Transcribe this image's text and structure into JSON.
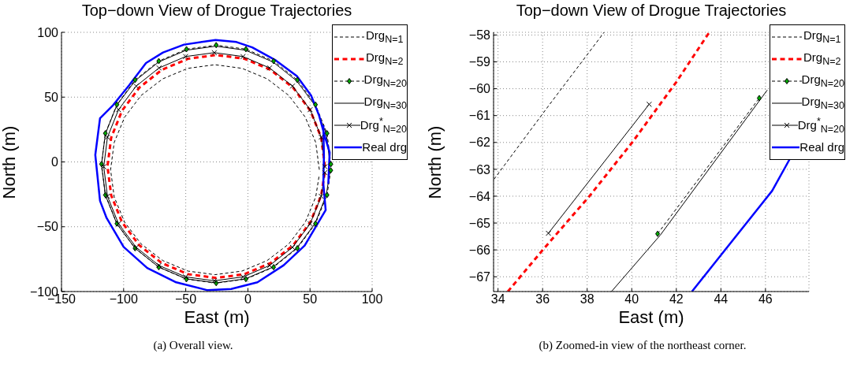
{
  "chart_data": [
    {
      "type": "line",
      "title": "Top−down View of Drogue Trajectories",
      "xlabel": "East (m)",
      "ylabel": "North (m)",
      "annotations": [
        "(a)  Overall view."
      ],
      "xlim": [
        -150,
        100
      ],
      "ylim": [
        -100,
        100
      ],
      "xticks": [
        -150,
        -100,
        -50,
        0,
        50,
        100
      ],
      "yticks": [
        -100,
        -50,
        0,
        50,
        100
      ],
      "grid": true,
      "legend": "top right",
      "series": [
        {
          "name": "Drg$_{N=1}$",
          "color": "#000000",
          "line_style": "dashed",
          "marker": "none",
          "x": [
            57.5,
            54.6,
            46.2,
            32.9,
            15.5,
            -4.7,
            -26.5,
            -48.3,
            -68.5,
            -85.9,
            -99.2,
            -107.6,
            -110.5,
            -107.6,
            -99.2,
            -85.9,
            -68.5,
            -48.3,
            -26.5,
            -4.7,
            15.5,
            32.9,
            46.2,
            54.6,
            57.4
          ],
          "values": [
            -6,
            15,
            34.5,
            51.3,
            64.1,
            72.2,
            75,
            72.2,
            64.1,
            51.3,
            34.5,
            15,
            -6,
            -27,
            -46.5,
            -63.3,
            -76.1,
            -84.2,
            -87,
            -84.2,
            -76.1,
            -63.3,
            -46.5,
            -27,
            -10.2
          ]
        },
        {
          "name": "Drg$_{N=2}$",
          "color": "#ff0000",
          "line_style": "dashed",
          "marker": "none",
          "x": [
            62,
            59,
            50.3,
            36.4,
            18.3,
            -2.8,
            -25.5,
            -48.2,
            -69.3,
            -87.4,
            -101.3,
            -110,
            -113,
            -110,
            -101.3,
            -87.4,
            -69.3,
            -48.2,
            -25.5,
            -2.8,
            18.3,
            36.4,
            50.3,
            59,
            61.9
          ],
          "values": [
            -3.5,
            18.8,
            39.5,
            57.3,
            71,
            79.6,
            82.5,
            79.6,
            71,
            57.3,
            39.5,
            18.8,
            -3.5,
            -25.8,
            -46.5,
            -64.3,
            -78,
            -86.6,
            -89.5,
            -86.6,
            -78,
            -64.3,
            -46.5,
            -25.8,
            -8
          ]
        },
        {
          "name": "Drg$_{N=20}$",
          "color": "#000000",
          "line_style": "dashed",
          "marker": "diamond",
          "x": [
            66.8,
            63.7,
            54.4,
            39.8,
            20.7,
            -1.6,
            -25.5,
            -49.4,
            -71.7,
            -90.8,
            -105.4,
            -114.7,
            -117.8,
            -114.7,
            -105.4,
            -90.8,
            -71.7,
            -49.4,
            -25.5,
            -1.6,
            20.7,
            39.8,
            54.4,
            63.7,
            66.7
          ],
          "values": [
            -1.7,
            22.1,
            44.2,
            63.2,
            77.8,
            87,
            90.1,
            87,
            77.8,
            63.2,
            44.2,
            22.1,
            -1.7,
            -25.5,
            -47.6,
            -66.6,
            -81.2,
            -90.4,
            -93.5,
            -90.4,
            -81.2,
            -66.6,
            -47.6,
            -25.5,
            -6.5
          ]
        },
        {
          "name": "Drg$_{N=30}$",
          "color": "#000000",
          "line_style": "solid",
          "marker": "none",
          "x": [
            66.2,
            63.1,
            53.9,
            39.2,
            20.2,
            -2,
            -25.8,
            -49.6,
            -71.8,
            -90.8,
            -105.5,
            -114.7,
            -117.8,
            -114.7,
            -105.5,
            -90.8,
            -71.8,
            -49.6,
            -25.8,
            -2,
            20.2,
            39.2,
            53.9,
            63.1,
            66.1
          ],
          "values": [
            -2,
            21.6,
            43.7,
            62.6,
            77.1,
            86.2,
            89.3,
            86.2,
            77.1,
            62.6,
            43.7,
            21.6,
            -2,
            -25.6,
            -47.7,
            -66.6,
            -81.1,
            -90.2,
            -93.3,
            -90.2,
            -81.1,
            -66.6,
            -47.7,
            -25.6,
            -6.8
          ]
        },
        {
          "name": "Drg$^{*}$$_{N=20}$",
          "color": "#000000",
          "line_style": "solid",
          "marker": "cross",
          "x": [
            62,
            59,
            50.1,
            35.9,
            17.5,
            -3.9,
            -27,
            -50.1,
            -71.5,
            -89.9,
            -104.1,
            -113,
            -116,
            -113,
            -104.1,
            -89.9,
            -71.5,
            -50.1,
            -27,
            -3.9,
            17.5,
            35.9,
            50.1,
            59,
            61.9
          ],
          "values": [
            -3.7,
            19.1,
            40.3,
            58.5,
            72.5,
            81.3,
            84.3,
            81.3,
            72.5,
            58.5,
            40.3,
            19.1,
            -3.7,
            -26.5,
            -47.7,
            -65.9,
            -79.9,
            -88.7,
            -91.7,
            -88.7,
            -79.9,
            -65.9,
            -47.7,
            -26.5,
            -8.3
          ]
        },
        {
          "name": "Real drg",
          "color": "#0000ff",
          "line_style": "solid",
          "marker": "none",
          "x": [
            60.7,
            61.2,
            60.7,
            62.6,
            45.7,
            28.8,
            7.7,
            -13.4,
            -32.4,
            -57.7,
            -81,
            -100,
            -113.7,
            -119,
            -122.8,
            -119,
            -108.4,
            -95.7,
            -82,
            -68.3,
            -51.4,
            -26,
            -9.2,
            3.5,
            22.5,
            39.4,
            51,
            57.3,
            62.6,
            65.8,
            64.7
          ],
          "values": [
            28.3,
            5,
            -16.7,
            -37.2,
            -64.5,
            -79.7,
            -92.9,
            -98,
            -99,
            -92.9,
            -81.8,
            -65.6,
            -43.3,
            -30,
            5.4,
            33.7,
            43.9,
            59,
            76.3,
            84.4,
            90.5,
            94.1,
            92.5,
            88.4,
            78.3,
            66.2,
            51,
            35.8,
            17.5,
            7.4,
            -16.9
          ]
        }
      ]
    },
    {
      "type": "line",
      "title": "Top−down View of Drogue Trajectories",
      "xlabel": "East (m)",
      "ylabel": "North (m)",
      "annotations": [
        "(b)  Zoomed-in view of the northeast corner."
      ],
      "xlim": [
        33.8,
        47.95
      ],
      "ylim": [
        -67.55,
        -57.9
      ],
      "xticks": [
        34,
        36,
        38,
        40,
        42,
        44,
        46
      ],
      "yticks": [
        -67,
        -66,
        -65,
        -64,
        -63,
        -62,
        -61,
        -60,
        -59,
        -58
      ],
      "grid": true,
      "legend": "top right",
      "series": [
        {
          "name": "Drg$_{N=1}$",
          "color": "#000000",
          "line_style": "dashed",
          "marker": "none",
          "x": [
            33.82,
            36.3,
            38.76
          ],
          "values": [
            -63.37,
            -60.6,
            -57.9
          ]
        },
        {
          "name": "Drg$_{N=2}$",
          "color": "#ff0000",
          "line_style": "dashed",
          "marker": "none",
          "x": [
            34.44,
            36.06,
            38.1,
            40.02,
            42,
            43.48
          ],
          "values": [
            -67.55,
            -65.95,
            -64,
            -62,
            -59.75,
            -57.9
          ]
        },
        {
          "name": "Drg$_{N=20}$",
          "color": "#000000",
          "line_style": "dashed",
          "marker": "diamond",
          "x": [
            41.16,
            45.72
          ],
          "values": [
            -65.4,
            -60.35
          ]
        },
        {
          "name": "Drg$_{N=30}$",
          "color": "#000000",
          "line_style": "solid",
          "marker": "none",
          "x": [
            39.09,
            41.28,
            46.08
          ],
          "values": [
            -67.55,
            -65.45,
            -60.05
          ]
        },
        {
          "name": "Drg$^{*}$$_{N=20}$",
          "color": "#000000",
          "line_style": "solid",
          "marker": "cross",
          "x": [
            36.26,
            40.78
          ],
          "values": [
            -65.38,
            -60.58
          ]
        },
        {
          "name": "Real drg",
          "color": "#0000ff",
          "line_style": "solid",
          "marker": "none",
          "x": [
            42.7,
            46.3,
            47.1
          ],
          "values": [
            -67.55,
            -63.8,
            -62.6
          ]
        }
      ]
    }
  ]
}
